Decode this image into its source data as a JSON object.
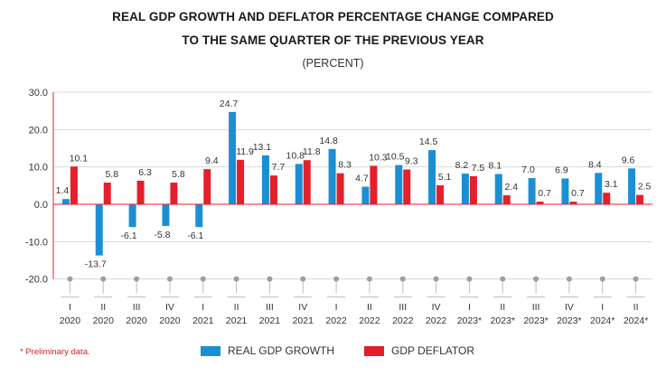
{
  "header": {
    "title_line1": "REAL GDP GROWTH AND DEFLATOR PERCENTAGE CHANGE COMPARED",
    "title_line2": "TO THE SAME QUARTER OF THE PREVIOUS YEAR",
    "subtitle": "(PERCENT)"
  },
  "footnote": "* Preliminary data.",
  "legend": {
    "gdp_label": "REAL GDP GROWTH",
    "deflator_label": "GDP DEFLATOR"
  },
  "colors": {
    "gdp": "#1b8fd4",
    "deflator": "#e4202b",
    "axis": "#e4202b",
    "grid": "#d9d9d9",
    "tick_marker": "#9e9e9e"
  },
  "chart_data": {
    "type": "bar",
    "categories": [
      [
        "I",
        "2020"
      ],
      [
        "II",
        "2020"
      ],
      [
        "III",
        "2020"
      ],
      [
        "IV",
        "2020"
      ],
      [
        "I",
        "2021"
      ],
      [
        "II",
        "2021"
      ],
      [
        "III",
        "2021"
      ],
      [
        "IV",
        "2021"
      ],
      [
        "I",
        "2022"
      ],
      [
        "II",
        "2022"
      ],
      [
        "III",
        "2022"
      ],
      [
        "IV",
        "2022"
      ],
      [
        "I",
        "2023*"
      ],
      [
        "II",
        "2023*"
      ],
      [
        "III",
        "2023*"
      ],
      [
        "IV",
        "2023*"
      ],
      [
        "I",
        "2024*"
      ],
      [
        "II",
        "2024*"
      ]
    ],
    "series": [
      {
        "name": "REAL GDP GROWTH",
        "values": [
          1.4,
          -13.7,
          -6.1,
          -5.8,
          -6.1,
          24.7,
          13.1,
          10.8,
          14.8,
          4.7,
          10.5,
          14.5,
          8.2,
          8.1,
          7.0,
          6.9,
          8.4,
          9.6
        ],
        "labels": [
          "1.4",
          "-13.7",
          "-6.1",
          "-5.8",
          "-6.1",
          "24.7",
          "13.1",
          "10.8",
          "14.8",
          "4.7",
          "10.5",
          "14.5",
          "8.2",
          "8.1",
          "7.0",
          "6.9",
          "8.4",
          "9.6"
        ]
      },
      {
        "name": "GDP DEFLATOR",
        "values": [
          10.1,
          5.8,
          6.3,
          5.8,
          9.4,
          11.9,
          7.7,
          11.8,
          8.3,
          10.3,
          9.3,
          5.1,
          7.5,
          2.4,
          0.7,
          0.7,
          3.1,
          2.5
        ],
        "labels": [
          "10.1",
          "5.8",
          "6.3",
          "5.8",
          "9.4",
          "11.9",
          "7.7",
          "11.8",
          "8.3",
          "10.3",
          "9.3",
          "5.1",
          "7.5",
          "2.4",
          "0.7",
          "0.7",
          "3.1",
          "2.5"
        ]
      }
    ],
    "yticks": [
      "30.0",
      "20.0",
      "10.0",
      "0.0",
      "-10.0",
      "-20.0"
    ],
    "ylim": [
      -20,
      30
    ],
    "grid": true,
    "legend_position": "bottom"
  }
}
